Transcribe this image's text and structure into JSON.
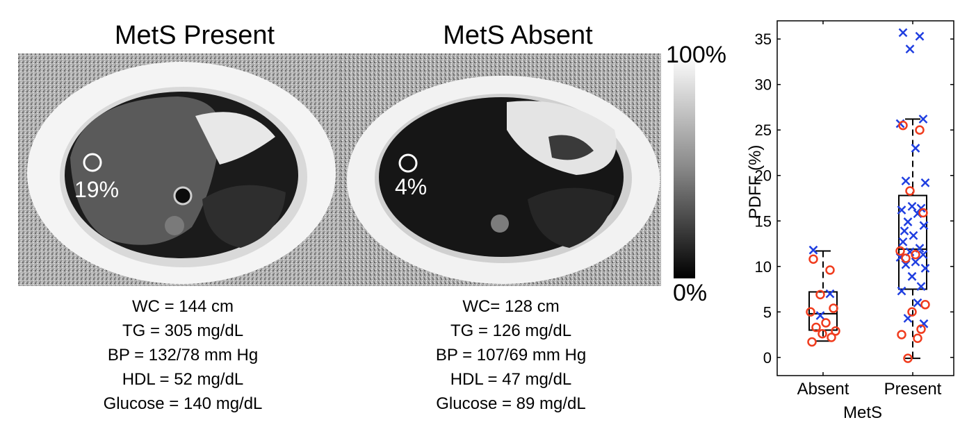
{
  "panels": [
    {
      "title": "MetS Present",
      "roi_pdff": "19%",
      "params": [
        "WC = 144 cm",
        "TG = 305 mg/dL",
        "BP = 132/78 mm Hg",
        "HDL = 52 mg/dL",
        "Glucose = 140 mg/dL"
      ]
    },
    {
      "title": "MetS Absent",
      "roi_pdff": "4%",
      "params": [
        "WC= 128 cm",
        "TG = 126 mg/dL",
        "BP = 107/69 mm Hg",
        "HDL = 47 mg/dL",
        "Glucose = 89 mg/dL"
      ]
    }
  ],
  "colorbar": {
    "max_label": "100%",
    "min_label": "0%"
  },
  "chart_data": {
    "type": "box",
    "ylabel": "PDFF (%)",
    "xlabel": "MetS",
    "categories": [
      "Absent",
      "Present"
    ],
    "ylim": [
      -2,
      37
    ],
    "yticks": [
      0,
      5,
      10,
      15,
      20,
      25,
      30,
      35
    ],
    "grid": false,
    "box_color": "#000000",
    "marker_colors": {
      "x": "#1f3ee0",
      "o": "#f03c1e"
    },
    "boxes": [
      {
        "category": "Absent",
        "whisker_low": 1.8,
        "q1": 3.0,
        "median": 4.8,
        "q3": 7.2,
        "whisker_high": 11.7
      },
      {
        "category": "Present",
        "whisker_low": -0.1,
        "q1": 7.5,
        "median": 11.9,
        "q3": 17.8,
        "whisker_high": 26.2
      }
    ],
    "points": [
      {
        "category": "Absent",
        "marker": "x",
        "values": [
          11.8,
          7.0,
          4.6
        ]
      },
      {
        "category": "Absent",
        "marker": "o",
        "values": [
          10.8,
          9.6,
          6.9,
          5.4,
          5.0,
          3.8,
          3.3,
          2.9,
          2.6,
          2.2,
          1.7
        ]
      },
      {
        "category": "Present",
        "marker": "x",
        "values": [
          35.7,
          35.3,
          33.9,
          26.2,
          25.7,
          23.0,
          19.4,
          19.2,
          16.6,
          16.4,
          16.2,
          15.8,
          14.9,
          14.5,
          13.9,
          13.4,
          12.7,
          12.0,
          11.6,
          11.3,
          11.0,
          10.5,
          10.2,
          9.8,
          8.9,
          7.8,
          7.3,
          6.0,
          4.3,
          3.7
        ]
      },
      {
        "category": "Present",
        "marker": "o",
        "values": [
          25.5,
          25.0,
          18.3,
          15.9,
          11.7,
          11.3,
          10.9,
          5.8,
          5.0,
          3.1,
          2.5,
          2.1,
          -0.1
        ]
      }
    ]
  }
}
